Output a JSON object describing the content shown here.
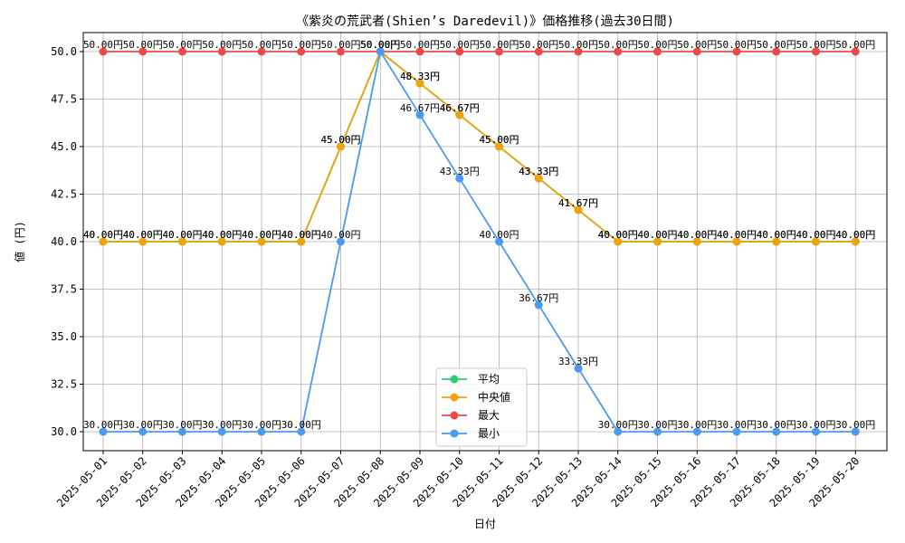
{
  "chart_data": {
    "type": "line",
    "title": "《紫炎の荒武者(Shien’s Daredevil)》価格推移(過去30日間)",
    "xlabel": "日付",
    "ylabel": "値 (円)",
    "ylim": [
      29.0,
      51.0
    ],
    "yticks": [
      "30.0",
      "32.5",
      "35.0",
      "37.5",
      "40.0",
      "42.5",
      "45.0",
      "47.5",
      "50.0"
    ],
    "grid": true,
    "legend_position": "bottom-center",
    "categories": [
      "2025-05-01",
      "2025-05-02",
      "2025-05-03",
      "2025-05-04",
      "2025-05-05",
      "2025-05-06",
      "2025-05-07",
      "2025-05-08",
      "2025-05-09",
      "2025-05-10",
      "2025-05-11",
      "2025-05-12",
      "2025-05-13",
      "2025-05-14",
      "2025-05-15",
      "2025-05-16",
      "2025-05-17",
      "2025-05-18",
      "2025-05-19",
      "2025-05-20"
    ],
    "series": [
      {
        "name": "平均",
        "color": "#2ecc71",
        "values": [
          40.0,
          40.0,
          40.0,
          40.0,
          40.0,
          40.0,
          45.0,
          50.0,
          48.33,
          46.67,
          45.0,
          43.33,
          41.67,
          40.0,
          40.0,
          40.0,
          40.0,
          40.0,
          40.0,
          40.0
        ]
      },
      {
        "name": "中央値",
        "color": "#f0a30a",
        "values": [
          40.0,
          40.0,
          40.0,
          40.0,
          40.0,
          40.0,
          45.0,
          50.0,
          48.33,
          46.67,
          45.0,
          43.33,
          41.67,
          40.0,
          40.0,
          40.0,
          40.0,
          40.0,
          40.0,
          40.0
        ]
      },
      {
        "name": "最大",
        "color": "#f04848",
        "values": [
          50.0,
          50.0,
          50.0,
          50.0,
          50.0,
          50.0,
          50.0,
          50.0,
          50.0,
          50.0,
          50.0,
          50.0,
          50.0,
          50.0,
          50.0,
          50.0,
          50.0,
          50.0,
          50.0,
          50.0
        ]
      },
      {
        "name": "最小",
        "color": "#4a9af0",
        "values": [
          30.0,
          30.0,
          30.0,
          30.0,
          30.0,
          30.0,
          40.0,
          50.0,
          46.67,
          43.33,
          40.0,
          36.67,
          33.33,
          30.0,
          30.0,
          30.0,
          30.0,
          30.0,
          30.0,
          30.0
        ]
      }
    ],
    "value_suffix": "円"
  }
}
